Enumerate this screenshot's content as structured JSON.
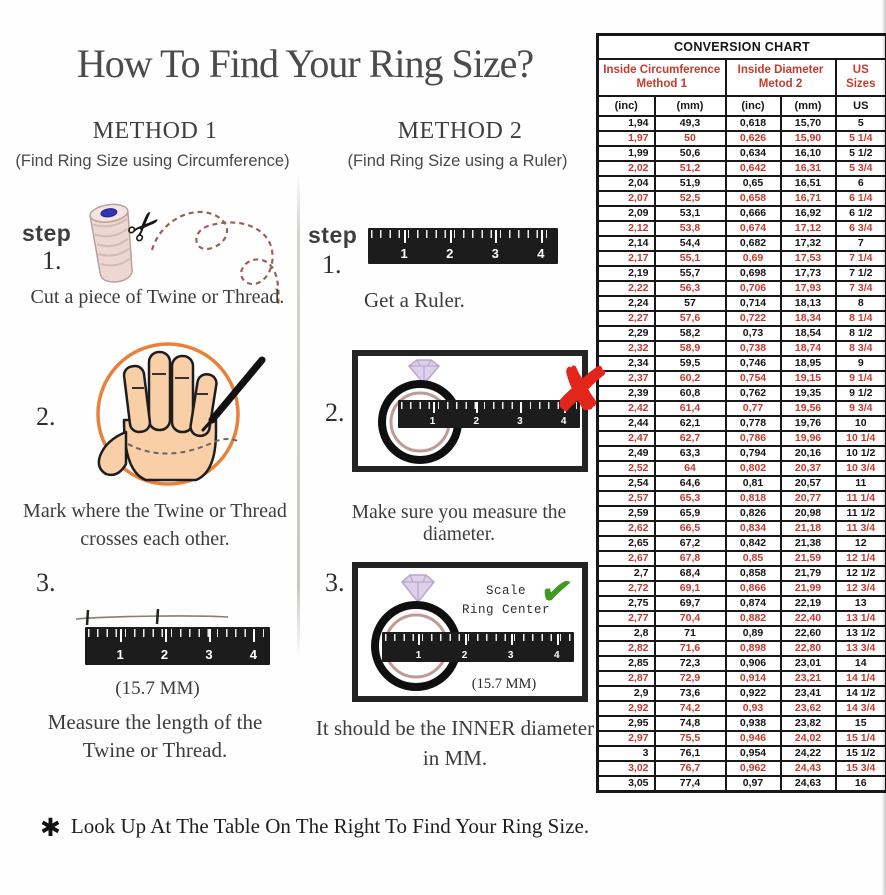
{
  "title": "How To Find Your Ring Size?",
  "method1": {
    "heading": "METHOD 1",
    "subtitle": "(Find Ring Size using Circumference)",
    "step_label": "step",
    "step1_num": "1.",
    "step1_caption": "Cut a piece of  Twine or Thread.",
    "step2_num": "2.",
    "step2_caption_line1": "Mark where the Twine or Thread",
    "step2_caption_line2": "crosses each other.",
    "step3_num": "3.",
    "step3_measurement": "(15.7 MM)",
    "step3_caption_line1": "Measure the length of the",
    "step3_caption_line2": "Twine or Thread."
  },
  "method2": {
    "heading": "METHOD 2",
    "subtitle": "(Find Ring Size using a Ruler)",
    "step_label": "step",
    "step1_num": "1.",
    "step1_caption": "Get a Ruler.",
    "step2_num": "2.",
    "step2_caption": "Make sure you measure the diameter.",
    "step3_num": "3.",
    "scale_note_line1": "Scale",
    "scale_note_line2": "Ring Center",
    "step3_measurement": "(15.7 MM)",
    "step3_caption_line1": "It should be the INNER diameter",
    "step3_caption_line2": "in MM."
  },
  "ruler_numbers": [
    "1",
    "2",
    "3",
    "4"
  ],
  "icons": {
    "scissors": "✂",
    "x_mark": "✘",
    "check_mark": "✔"
  },
  "footer": {
    "bullet": "✱",
    "text": "Look Up At The Table On The Right To Find Your Ring Size."
  },
  "colors": {
    "table_red": "#c23b2e",
    "x_red": "#e2261b",
    "check_green": "#3f9b1f",
    "circle_orange": "#e8823a"
  },
  "chart_data": {
    "type": "table",
    "title": "CONVERSION CHART",
    "column_groups": [
      {
        "label_line1": "Inside Circumference",
        "label_line2": "Method 1",
        "span": 2
      },
      {
        "label_line1": "Inside Diameter",
        "label_line2": "Metod 2",
        "span": 2
      },
      {
        "label_line1": "US Sizes",
        "label_line2": "",
        "span": 1
      }
    ],
    "columns": [
      "(inc)",
      "(mm)",
      "(inc)",
      "(mm)",
      "US"
    ],
    "row_highlight_color": "#c23b2e",
    "highlight_pattern": "every second row red starting with row 2",
    "rows": [
      [
        "1,94",
        "49,3",
        "0,618",
        "15,70",
        "5"
      ],
      [
        "1,97",
        "50",
        "0,626",
        "15,90",
        "5 1/4"
      ],
      [
        "1,99",
        "50,6",
        "0,634",
        "16,10",
        "5 1/2"
      ],
      [
        "2,02",
        "51,2",
        "0,642",
        "16,31",
        "5 3/4"
      ],
      [
        "2,04",
        "51,9",
        "0,65",
        "16,51",
        "6"
      ],
      [
        "2,07",
        "52,5",
        "0,658",
        "16,71",
        "6 1/4"
      ],
      [
        "2,09",
        "53,1",
        "0,666",
        "16,92",
        "6 1/2"
      ],
      [
        "2,12",
        "53,8",
        "0,674",
        "17,12",
        "6 3/4"
      ],
      [
        "2,14",
        "54,4",
        "0,682",
        "17,32",
        "7"
      ],
      [
        "2,17",
        "55,1",
        "0,69",
        "17,53",
        "7 1/4"
      ],
      [
        "2,19",
        "55,7",
        "0,698",
        "17,73",
        "7 1/2"
      ],
      [
        "2,22",
        "56,3",
        "0,706",
        "17,93",
        "7 3/4"
      ],
      [
        "2,24",
        "57",
        "0,714",
        "18,13",
        "8"
      ],
      [
        "2,27",
        "57,6",
        "0,722",
        "18,34",
        "8 1/4"
      ],
      [
        "2,29",
        "58,2",
        "0,73",
        "18,54",
        "8 1/2"
      ],
      [
        "2,32",
        "58,9",
        "0,738",
        "18,74",
        "8 3/4"
      ],
      [
        "2,34",
        "59,5",
        "0,746",
        "18,95",
        "9"
      ],
      [
        "2,37",
        "60,2",
        "0,754",
        "19,15",
        "9 1/4"
      ],
      [
        "2,39",
        "60,8",
        "0,762",
        "19,35",
        "9 1/2"
      ],
      [
        "2,42",
        "61,4",
        "0,77",
        "19,56",
        "9 3/4"
      ],
      [
        "2,44",
        "62,1",
        "0,778",
        "19,76",
        "10"
      ],
      [
        "2,47",
        "62,7",
        "0,786",
        "19,96",
        "10 1/4"
      ],
      [
        "2,49",
        "63,3",
        "0,794",
        "20,16",
        "10 1/2"
      ],
      [
        "2,52",
        "64",
        "0,802",
        "20,37",
        "10 3/4"
      ],
      [
        "2,54",
        "64,6",
        "0,81",
        "20,57",
        "11"
      ],
      [
        "2,57",
        "65,3",
        "0,818",
        "20,77",
        "11 1/4"
      ],
      [
        "2,59",
        "65,9",
        "0,826",
        "20,98",
        "11 1/2"
      ],
      [
        "2,62",
        "66,5",
        "0,834",
        "21,18",
        "11 3/4"
      ],
      [
        "2,65",
        "67,2",
        "0,842",
        "21,38",
        "12"
      ],
      [
        "2,67",
        "67,8",
        "0,85",
        "21,59",
        "12 1/4"
      ],
      [
        "2,7",
        "68,4",
        "0,858",
        "21,79",
        "12 1/2"
      ],
      [
        "2,72",
        "69,1",
        "0,866",
        "21,99",
        "12 3/4"
      ],
      [
        "2,75",
        "69,7",
        "0,874",
        "22,19",
        "13"
      ],
      [
        "2,77",
        "70,4",
        "0,882",
        "22,40",
        "13 1/4"
      ],
      [
        "2,8",
        "71",
        "0,89",
        "22,60",
        "13 1/2"
      ],
      [
        "2,82",
        "71,6",
        "0,898",
        "22,80",
        "13 3/4"
      ],
      [
        "2,85",
        "72,3",
        "0,906",
        "23,01",
        "14"
      ],
      [
        "2,87",
        "72,9",
        "0,914",
        "23,21",
        "14 1/4"
      ],
      [
        "2,9",
        "73,6",
        "0,922",
        "23,41",
        "14 1/2"
      ],
      [
        "2,92",
        "74,2",
        "0,93",
        "23,62",
        "14 3/4"
      ],
      [
        "2,95",
        "74,8",
        "0,938",
        "23,82",
        "15"
      ],
      [
        "2,97",
        "75,5",
        "0,946",
        "24,02",
        "15 1/4"
      ],
      [
        "3",
        "76,1",
        "0,954",
        "24,22",
        "15 1/2"
      ],
      [
        "3,02",
        "76,7",
        "0,962",
        "24,43",
        "15 3/4"
      ],
      [
        "3,05",
        "77,4",
        "0,97",
        "24,63",
        "16"
      ]
    ]
  }
}
